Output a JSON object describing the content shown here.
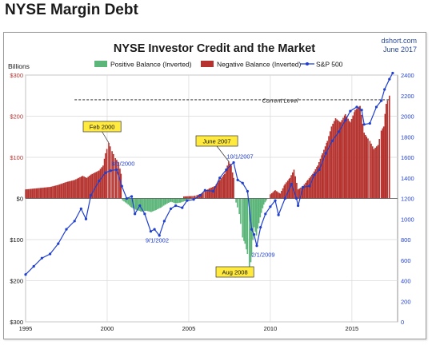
{
  "page_title": "NYSE Margin Debt",
  "source": {
    "site": "dshort.com",
    "date": "June 2017"
  },
  "chart_data": {
    "type": "bar",
    "title": "NYSE Investor Credit and the Market",
    "left_axis_unit": "Billions",
    "y_left": {
      "min": -300,
      "max": 300,
      "ticks": [
        300,
        200,
        100,
        0,
        -100,
        -200,
        -300
      ],
      "tick_labels": [
        "$300",
        "$200",
        "$100",
        "$0",
        "$100",
        "$200",
        "$300"
      ]
    },
    "y_right": {
      "min": 0,
      "max": 2400,
      "ticks": [
        0,
        200,
        400,
        600,
        800,
        1000,
        1200,
        1400,
        1600,
        1800,
        2000,
        2200,
        2400
      ],
      "tick_labels": [
        "0",
        "200",
        "400",
        "600",
        "800",
        "1000",
        "1200",
        "1400",
        "1600",
        "1800",
        "2000",
        "2200",
        "2400"
      ]
    },
    "x": {
      "min": 1995,
      "max": 2017.8,
      "ticks": [
        1995,
        2000,
        2005,
        2010,
        2015
      ],
      "tick_labels": [
        "1995",
        "2000",
        "2005",
        "2010",
        "2015"
      ]
    },
    "grid": true,
    "legend_placement": "top",
    "series": [
      {
        "name": "Positive Balance (Inverted)",
        "color": "#5cb67a",
        "axis": "left",
        "kind": "bar",
        "points": [
          [
            2000.95,
            -5
          ],
          [
            2001.2,
            -12
          ],
          [
            2001.5,
            -22
          ],
          [
            2001.8,
            -28
          ],
          [
            2002.1,
            -32
          ],
          [
            2002.4,
            -30
          ],
          [
            2002.7,
            -33
          ],
          [
            2003.0,
            -28
          ],
          [
            2003.3,
            -22
          ],
          [
            2003.6,
            -14
          ],
          [
            2003.9,
            -8
          ],
          [
            2004.2,
            -12
          ],
          [
            2004.5,
            -10
          ],
          [
            2004.8,
            -6
          ],
          [
            2005.0,
            -3
          ],
          [
            2007.9,
            -10
          ],
          [
            2008.1,
            -38
          ],
          [
            2008.3,
            -95
          ],
          [
            2008.45,
            -110
          ],
          [
            2008.6,
            -135
          ],
          [
            2008.72,
            -182
          ],
          [
            2008.85,
            -140
          ],
          [
            2009.0,
            -70
          ],
          [
            2009.15,
            -90
          ],
          [
            2009.3,
            -60
          ],
          [
            2009.45,
            -35
          ],
          [
            2009.6,
            -15
          ],
          [
            2009.75,
            -5
          ]
        ]
      },
      {
        "name": "Negative Balance (Inverted)",
        "color": "#b5322e",
        "axis": "left",
        "kind": "bar",
        "points": [
          [
            1995.0,
            22
          ],
          [
            1995.5,
            24
          ],
          [
            1996.0,
            26
          ],
          [
            1996.5,
            28
          ],
          [
            1997.0,
            33
          ],
          [
            1997.5,
            40
          ],
          [
            1998.0,
            45
          ],
          [
            1998.5,
            55
          ],
          [
            1998.75,
            50
          ],
          [
            1999.0,
            58
          ],
          [
            1999.5,
            68
          ],
          [
            1999.75,
            80
          ],
          [
            1999.9,
            110
          ],
          [
            2000.1,
            135
          ],
          [
            2000.3,
            115
          ],
          [
            2000.5,
            98
          ],
          [
            2000.7,
            88
          ],
          [
            2000.85,
            60
          ],
          [
            2004.7,
            5
          ],
          [
            2005.3,
            6
          ],
          [
            2005.5,
            8
          ],
          [
            2005.8,
            12
          ],
          [
            2006.0,
            18
          ],
          [
            2006.3,
            25
          ],
          [
            2006.6,
            30
          ],
          [
            2006.9,
            45
          ],
          [
            2007.2,
            60
          ],
          [
            2007.45,
            90
          ],
          [
            2007.6,
            80
          ],
          [
            2007.75,
            50
          ],
          [
            2010.0,
            10
          ],
          [
            2010.3,
            20
          ],
          [
            2010.6,
            12
          ],
          [
            2010.9,
            35
          ],
          [
            2011.2,
            50
          ],
          [
            2011.45,
            70
          ],
          [
            2011.7,
            22
          ],
          [
            2012.0,
            30
          ],
          [
            2012.3,
            45
          ],
          [
            2012.6,
            60
          ],
          [
            2012.9,
            80
          ],
          [
            2013.2,
            110
          ],
          [
            2013.5,
            140
          ],
          [
            2013.75,
            175
          ],
          [
            2014.0,
            195
          ],
          [
            2014.3,
            185
          ],
          [
            2014.6,
            205
          ],
          [
            2014.9,
            185
          ],
          [
            2015.2,
            215
          ],
          [
            2015.5,
            225
          ],
          [
            2015.75,
            160
          ],
          [
            2015.9,
            150
          ],
          [
            2016.1,
            140
          ],
          [
            2016.35,
            120
          ],
          [
            2016.6,
            130
          ],
          [
            2016.8,
            165
          ],
          [
            2016.95,
            175
          ],
          [
            2017.1,
            230
          ],
          [
            2017.3,
            250
          ]
        ]
      },
      {
        "name": "S&P 500",
        "color": "#1f3fcf",
        "axis": "right",
        "kind": "line",
        "points": [
          [
            1995.0,
            460
          ],
          [
            1995.5,
            540
          ],
          [
            1996.0,
            620
          ],
          [
            1996.5,
            660
          ],
          [
            1997.0,
            760
          ],
          [
            1997.5,
            900
          ],
          [
            1998.0,
            980
          ],
          [
            1998.4,
            1100
          ],
          [
            1998.7,
            1000
          ],
          [
            1999.0,
            1230
          ],
          [
            1999.5,
            1370
          ],
          [
            1999.9,
            1450
          ],
          [
            2000.2,
            1470
          ],
          [
            2000.58,
            1480
          ],
          [
            2000.9,
            1320
          ],
          [
            2001.2,
            1200
          ],
          [
            2001.5,
            1220
          ],
          [
            2001.7,
            1050
          ],
          [
            2002.0,
            1130
          ],
          [
            2002.3,
            1050
          ],
          [
            2002.67,
            880
          ],
          [
            2002.9,
            900
          ],
          [
            2003.2,
            840
          ],
          [
            2003.5,
            980
          ],
          [
            2003.9,
            1100
          ],
          [
            2004.2,
            1130
          ],
          [
            2004.6,
            1110
          ],
          [
            2004.9,
            1180
          ],
          [
            2005.3,
            1190
          ],
          [
            2005.7,
            1230
          ],
          [
            2006.0,
            1280
          ],
          [
            2006.5,
            1270
          ],
          [
            2006.9,
            1400
          ],
          [
            2007.3,
            1480
          ],
          [
            2007.75,
            1550
          ],
          [
            2008.0,
            1380
          ],
          [
            2008.3,
            1350
          ],
          [
            2008.6,
            1270
          ],
          [
            2008.85,
            900
          ],
          [
            2009.0,
            850
          ],
          [
            2009.17,
            740
          ],
          [
            2009.4,
            920
          ],
          [
            2009.7,
            1050
          ],
          [
            2010.0,
            1120
          ],
          [
            2010.3,
            1180
          ],
          [
            2010.5,
            1040
          ],
          [
            2010.9,
            1200
          ],
          [
            2011.3,
            1340
          ],
          [
            2011.6,
            1200
          ],
          [
            2011.7,
            1130
          ],
          [
            2012.0,
            1310
          ],
          [
            2012.4,
            1320
          ],
          [
            2012.7,
            1430
          ],
          [
            2013.0,
            1480
          ],
          [
            2013.4,
            1640
          ],
          [
            2013.8,
            1760
          ],
          [
            2014.2,
            1850
          ],
          [
            2014.6,
            1960
          ],
          [
            2014.9,
            2050
          ],
          [
            2015.3,
            2090
          ],
          [
            2015.6,
            2060
          ],
          [
            2015.75,
            1920
          ],
          [
            2016.1,
            1930
          ],
          [
            2016.5,
            2090
          ],
          [
            2016.8,
            2150
          ],
          [
            2017.0,
            2260
          ],
          [
            2017.3,
            2360
          ],
          [
            2017.5,
            2420
          ]
        ]
      }
    ],
    "annotations": [
      {
        "text": "Feb 2000",
        "kind": "callout",
        "x": 2000.1,
        "y": 135
      },
      {
        "text": "June 2007",
        "kind": "callout",
        "x": 2007.45,
        "y": 90
      },
      {
        "text": "Aug 2008",
        "kind": "callout",
        "x": 2008.6,
        "y": -182
      },
      {
        "text": "8/1/2000",
        "kind": "sp-label",
        "x": 2000.58,
        "y": 1480
      },
      {
        "text": "10/1/2007",
        "kind": "sp-label",
        "x": 2007.75,
        "y": 1550
      },
      {
        "text": "9/1/2002",
        "kind": "sp-label",
        "x": 2002.67,
        "y": 880
      },
      {
        "text": "2/1/2009",
        "kind": "sp-label",
        "x": 2009.17,
        "y": 740
      }
    ],
    "reference_line": {
      "label": "Current Level",
      "value": 240,
      "x_start": 1998.0,
      "x_end": 2017.3
    }
  }
}
